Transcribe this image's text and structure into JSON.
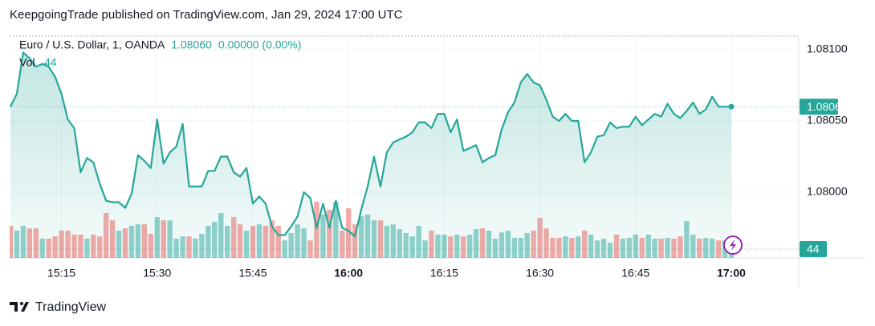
{
  "published": "KeepgoingTrade published on TradingView.com, Jan 29, 2024 17:00 UTC",
  "brand": "TradingView",
  "chart_data": {
    "type": "line",
    "last_label": "1.08060",
    "change_label": "0.00000 (0.00%)",
    "categories": [
      null,
      null,
      null,
      null,
      null,
      null,
      null,
      null,
      "15:15",
      null,
      null,
      null,
      null,
      null,
      null,
      null,
      null,
      null,
      null,
      null,
      null,
      null,
      null,
      "15:30",
      null,
      null,
      null,
      null,
      null,
      null,
      null,
      null,
      null,
      null,
      null,
      null,
      null,
      null,
      "15:45",
      null,
      null,
      null,
      null,
      null,
      null,
      null,
      null,
      null,
      null,
      null,
      null,
      null,
      null,
      "16:00",
      null,
      null,
      null,
      null,
      null,
      null,
      null,
      null,
      null,
      null,
      null,
      null,
      null,
      null,
      "16:15",
      null,
      null,
      null,
      null,
      null,
      null,
      null,
      null,
      null,
      null,
      null,
      null,
      null,
      null,
      "16:30",
      null,
      null,
      null,
      null,
      null,
      null,
      null,
      null,
      null,
      null,
      null,
      null,
      null,
      null,
      "16:45",
      null,
      null,
      null,
      null,
      null,
      null,
      null,
      null,
      null,
      null,
      null,
      null,
      null,
      null,
      "17:00"
    ],
    "series": [
      {
        "name": "Euro / U.S. Dollar, 1, OANDA",
        "color": "#26a69a",
        "values": [
          1.0806,
          1.08069,
          1.08098,
          1.08094,
          1.08088,
          1.0809,
          1.08088,
          1.08081,
          1.08069,
          1.08051,
          1.08045,
          1.08014,
          1.08024,
          1.08021,
          1.08006,
          1.07994,
          1.07993,
          1.07993,
          1.07989,
          1.07999,
          1.08026,
          1.08022,
          1.08017,
          1.08051,
          1.0802,
          1.08028,
          1.08032,
          1.08048,
          1.08004,
          1.08004,
          1.08004,
          1.08015,
          1.08015,
          1.08025,
          1.08025,
          1.08014,
          1.08011,
          1.08017,
          1.07992,
          1.07997,
          1.07992,
          1.07976,
          1.0797,
          1.0797,
          1.07976,
          1.07983,
          1.08,
          1.07996,
          1.07975,
          1.07992,
          1.07975,
          1.07994,
          1.07975,
          1.07973,
          1.07969,
          1.07988,
          1.08004,
          1.08025,
          1.08004,
          1.08028,
          1.08035,
          1.08037,
          1.08039,
          1.08042,
          1.08049,
          1.08049,
          1.08045,
          1.08055,
          1.08055,
          1.08042,
          1.08051,
          1.08029,
          1.08031,
          1.08033,
          1.08021,
          1.08024,
          1.08026,
          1.08044,
          1.08056,
          1.08063,
          1.08077,
          1.08083,
          1.08077,
          1.08075,
          1.08065,
          1.08053,
          1.0805,
          1.08055,
          1.0805,
          1.0805,
          1.08021,
          1.08028,
          1.08039,
          1.0804,
          1.08049,
          1.08045,
          1.08046,
          1.08046,
          1.08053,
          1.08047,
          1.08051,
          1.08055,
          1.08053,
          1.08062,
          1.08055,
          1.08052,
          1.08057,
          1.08063,
          1.08055,
          1.08058,
          1.08067,
          1.0806,
          1.0806,
          1.0806
        ]
      },
      {
        "name": "Vol",
        "type": "bar",
        "axis": "y2",
        "up_color": "rgba(38,166,154,0.5)",
        "down_color": "rgba(239,83,80,0.5)",
        "values": [
          88,
          75,
          88,
          81,
          81,
          53,
          53,
          59,
          75,
          75,
          64,
          64,
          53,
          64,
          59,
          123,
          103,
          75,
          81,
          88,
          92,
          92,
          66,
          112,
          103,
          103,
          53,
          59,
          59,
          53,
          66,
          88,
          99,
          123,
          88,
          112,
          92,
          75,
          88,
          92,
          88,
          103,
          88,
          48,
          68,
          92,
          81,
          48,
          154,
          119,
          132,
          154,
          75,
          136,
          92,
          114,
          119,
          103,
          103,
          88,
          92,
          79,
          68,
          59,
          88,
          48,
          75,
          64,
          64,
          59,
          64,
          59,
          64,
          79,
          81,
          75,
          53,
          70,
          75,
          55,
          55,
          68,
          75,
          110,
          81,
          55,
          55,
          59,
          55,
          59,
          75,
          64,
          48,
          53,
          42,
          64,
          53,
          55,
          64,
          55,
          64,
          53,
          53,
          55,
          53,
          59,
          101,
          64,
          53,
          55,
          53,
          48,
          48,
          44
        ]
      }
    ],
    "ylim": [
      1.0795,
      1.0811
    ],
    "yticks": [
      {
        "value": 1.081,
        "label": "1.08100"
      },
      {
        "value": 1.0805,
        "label": "1.08050"
      },
      {
        "value": 1.08,
        "label": "1.08000"
      }
    ],
    "y2lim": [
      0,
      600
    ],
    "grid": true
  }
}
